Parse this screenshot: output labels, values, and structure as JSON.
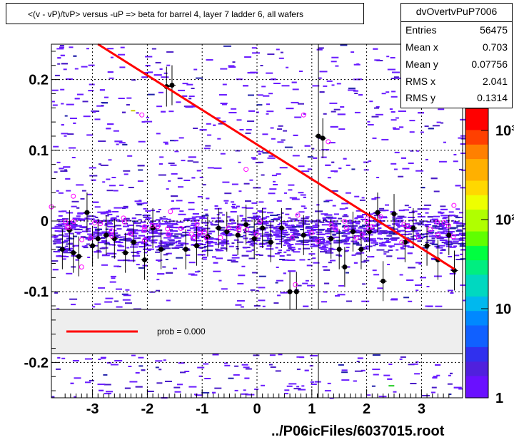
{
  "title": "<(v - vP)/tvP> versus  -uP => beta for barrel 4, layer 7 ladder 6, all wafers",
  "stats": {
    "name": "dvOvertvPuP7006",
    "rows": [
      {
        "label": "Entries",
        "value": "56475"
      },
      {
        "label": "Mean x",
        "value": "0.703"
      },
      {
        "label": "Mean y",
        "value": "0.07756"
      },
      {
        "label": "RMS x",
        "value": "2.041"
      },
      {
        "label": "RMS y",
        "value": "0.1314"
      }
    ]
  },
  "legend": {
    "fit_label": "prob = 0.000",
    "fit_color": "#ff0000"
  },
  "footer": "../P06icFiles/6037015.root",
  "chart_data": {
    "type": "heatmap",
    "xlim": [
      -3.75,
      3.75
    ],
    "ylim": [
      -0.25,
      0.25
    ],
    "x_ticks": [
      "-3",
      "-2",
      "-1",
      "0",
      "1",
      "2",
      "3"
    ],
    "y_ticks": [
      "0.2",
      "0.1",
      "0",
      "-0.1",
      "-0.2"
    ],
    "colorbar_ticks": [
      "1",
      "10",
      "10²",
      "10³"
    ],
    "grid": true,
    "fit_line": {
      "x": [
        -2.9,
        3.6
      ],
      "y": [
        0.25,
        -0.068
      ]
    },
    "profile_points": [
      {
        "x": -3.55,
        "y": -0.04
      },
      {
        "x": -3.42,
        "y": -0.013
      },
      {
        "x": -3.35,
        "y": -0.045
      },
      {
        "x": -3.25,
        "y": -0.05
      },
      {
        "x": -3.1,
        "y": 0.012
      },
      {
        "x": -3.0,
        "y": -0.035
      },
      {
        "x": -2.9,
        "y": -0.025
      },
      {
        "x": -2.75,
        "y": -0.02
      },
      {
        "x": -2.6,
        "y": -0.025
      },
      {
        "x": -2.4,
        "y": -0.045
      },
      {
        "x": -2.25,
        "y": -0.03
      },
      {
        "x": -2.05,
        "y": -0.055
      },
      {
        "x": -1.9,
        "y": -0.01
      },
      {
        "x": -1.75,
        "y": -0.04
      },
      {
        "x": -1.65,
        "y": 0.19
      },
      {
        "x": -1.55,
        "y": 0.192
      },
      {
        "x": -1.3,
        "y": -0.04
      },
      {
        "x": -1.1,
        "y": -0.035
      },
      {
        "x": -0.9,
        "y": -0.022
      },
      {
        "x": -0.7,
        "y": -0.01
      },
      {
        "x": -0.55,
        "y": -0.015
      },
      {
        "x": -0.35,
        "y": -0.02
      },
      {
        "x": -0.2,
        "y": -0.005
      },
      {
        "x": -0.05,
        "y": -0.025
      },
      {
        "x": 0.1,
        "y": -0.01
      },
      {
        "x": 0.25,
        "y": -0.03
      },
      {
        "x": 0.45,
        "y": -0.01
      },
      {
        "x": 0.6,
        "y": -0.1
      },
      {
        "x": 0.72,
        "y": -0.1
      },
      {
        "x": 0.85,
        "y": -0.02
      },
      {
        "x": 1.12,
        "y": 0.12
      },
      {
        "x": 1.2,
        "y": 0.117
      },
      {
        "x": 1.35,
        "y": -0.025
      },
      {
        "x": 1.5,
        "y": -0.04
      },
      {
        "x": 1.6,
        "y": -0.065
      },
      {
        "x": 1.75,
        "y": -0.015
      },
      {
        "x": 1.9,
        "y": -0.04
      },
      {
        "x": 2.05,
        "y": -0.015
      },
      {
        "x": 2.2,
        "y": 0.012
      },
      {
        "x": 2.3,
        "y": -0.085
      },
      {
        "x": 2.5,
        "y": 0.01
      },
      {
        "x": 2.7,
        "y": -0.03
      },
      {
        "x": 2.85,
        "y": -0.01
      },
      {
        "x": 3.1,
        "y": -0.035
      },
      {
        "x": 3.3,
        "y": -0.055
      },
      {
        "x": 3.5,
        "y": -0.02
      },
      {
        "x": 3.6,
        "y": -0.07
      }
    ],
    "open_points": [
      {
        "x": -3.75,
        "y": 0.02
      },
      {
        "x": -3.35,
        "y": 0.035
      },
      {
        "x": -2.1,
        "y": 0.15
      },
      {
        "x": -0.2,
        "y": 0.073
      },
      {
        "x": 0.85,
        "y": 0.15
      },
      {
        "x": 1.3,
        "y": 0.112
      },
      {
        "x": 0.7,
        "y": -0.09
      },
      {
        "x": -3.2,
        "y": -0.065
      },
      {
        "x": 3.3,
        "y": -0.02
      }
    ]
  }
}
